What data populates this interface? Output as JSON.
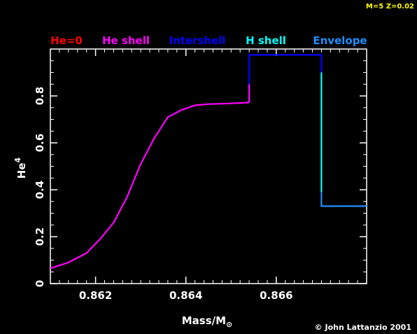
{
  "chart_data": {
    "type": "line",
    "header_note": "M=5 Z=0.02",
    "credit": "© John Lattanzio 2001",
    "xlabel_main": "Mass/M",
    "xlabel_sub": "⊙",
    "ylabel_main": "He",
    "ylabel_sup": "4",
    "xlim": [
      0.861,
      0.868
    ],
    "ylim": [
      0,
      1.0
    ],
    "x_ticks": [
      0.862,
      0.864,
      0.866
    ],
    "x_tick_labels": [
      "0.862",
      "0.864",
      "0.866"
    ],
    "y_ticks": [
      0,
      0.2,
      0.4,
      0.6,
      0.8
    ],
    "y_tick_labels": [
      "0",
      "0.2",
      "0.4",
      "0.6",
      "0.8"
    ],
    "series": [
      {
        "name": "He=0",
        "color": "#ff0000",
        "x": [],
        "y": []
      },
      {
        "name": "He shell",
        "color": "#ff00ff",
        "x": [
          0.861,
          0.8614,
          0.8618,
          0.8621,
          0.8624,
          0.8627,
          0.863,
          0.8633,
          0.8636,
          0.8639,
          0.8642,
          0.8645,
          0.865,
          0.8654
        ],
        "y": [
          0.065,
          0.09,
          0.13,
          0.19,
          0.26,
          0.37,
          0.51,
          0.62,
          0.71,
          0.74,
          0.76,
          0.765,
          0.768,
          0.772
        ]
      },
      {
        "name": "Intershell",
        "color": "#0000ff",
        "x": [
          0.8654,
          0.8654,
          0.867,
          0.867
        ],
        "y": [
          0.772,
          0.975,
          0.975,
          0.9
        ]
      },
      {
        "name": "H shell",
        "color": "#00ffff",
        "x": [
          0.867,
          0.867
        ],
        "y": [
          0.9,
          0.39
        ]
      },
      {
        "name": "Envelope",
        "color": "#1e90ff",
        "x": [
          0.867,
          0.867,
          0.868
        ],
        "y": [
          0.39,
          0.33,
          0.33
        ]
      }
    ],
    "connector": {
      "color": "#ff00ff",
      "x": [
        0.8654,
        0.8654
      ],
      "y": [
        0.772,
        0.85
      ]
    }
  }
}
